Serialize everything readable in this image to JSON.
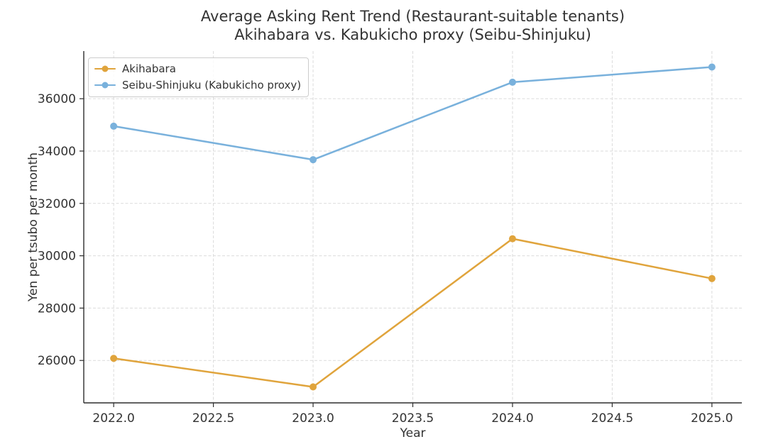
{
  "title": {
    "line1": "Average Asking Rent Trend (Restaurant-suitable tenants)",
    "line2": "Akihabara vs. Kabukicho proxy (Seibu-Shinjuku)"
  },
  "colors": {
    "akihabara": "#E0A43C",
    "seibu_shinjuku": "#79B1DC",
    "grid": "#DBDBDB",
    "spine": "#2E2E2E",
    "text": "#333333",
    "legend_border": "#CCCCCC",
    "background": "#FFFFFF"
  },
  "chart_data": {
    "type": "line",
    "title": "Average Asking Rent Trend (Restaurant-suitable tenants)\nAkihabara vs. Kabukicho proxy (Seibu-Shinjuku)",
    "x": [
      2022,
      2023,
      2024,
      2025
    ],
    "series": [
      {
        "name": "Akihabara",
        "color": "#E0A43C",
        "values": [
          26080,
          24990,
          30650,
          29130
        ]
      },
      {
        "name": "Seibu-Shinjuku (Kabukicho proxy)",
        "color": "#79B1DC",
        "values": [
          34950,
          33670,
          36630,
          37210
        ]
      }
    ],
    "xlabel": "Year",
    "ylabel": "Yen per tsubo per month",
    "xlim": [
      2021.85,
      2025.15
    ],
    "ylim": [
      24380,
      37820
    ],
    "xticks": [
      2022.0,
      2022.5,
      2023.0,
      2023.5,
      2024.0,
      2024.5,
      2025.0
    ],
    "xtick_labels": [
      "2022.0",
      "2022.5",
      "2023.0",
      "2023.5",
      "2024.0",
      "2024.5",
      "2025.0"
    ],
    "yticks": [
      26000,
      28000,
      30000,
      32000,
      34000,
      36000
    ],
    "ytick_labels": [
      "26000",
      "28000",
      "30000",
      "32000",
      "34000",
      "36000"
    ],
    "grid": true,
    "grid_style": "dashed",
    "marker": "circle",
    "legend_position": "upper left"
  }
}
